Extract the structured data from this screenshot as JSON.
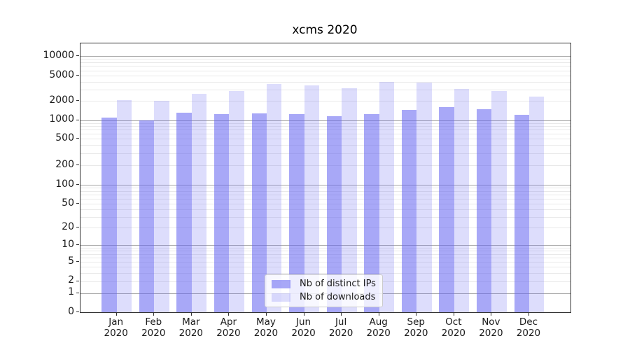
{
  "chart_data": {
    "type": "bar",
    "title": "xcms 2020",
    "categories": [
      {
        "month": "Jan",
        "year": "2020"
      },
      {
        "month": "Feb",
        "year": "2020"
      },
      {
        "month": "Mar",
        "year": "2020"
      },
      {
        "month": "Apr",
        "year": "2020"
      },
      {
        "month": "May",
        "year": "2020"
      },
      {
        "month": "Jun",
        "year": "2020"
      },
      {
        "month": "Jul",
        "year": "2020"
      },
      {
        "month": "Aug",
        "year": "2020"
      },
      {
        "month": "Sep",
        "year": "2020"
      },
      {
        "month": "Oct",
        "year": "2020"
      },
      {
        "month": "Nov",
        "year": "2020"
      },
      {
        "month": "Dec",
        "year": "2020"
      }
    ],
    "series": [
      {
        "name": "Nb of distinct IPs",
        "color": "rgba(100,100,240,0.56)",
        "values": [
          1080,
          990,
          1300,
          1230,
          1280,
          1240,
          1140,
          1250,
          1440,
          1600,
          1500,
          1200
        ]
      },
      {
        "name": "Nb of downloads",
        "color": "rgba(100,100,240,0.22)",
        "values": [
          2070,
          1990,
          2600,
          2840,
          3700,
          3550,
          3140,
          3970,
          3900,
          3100,
          2900,
          2340
        ]
      }
    ],
    "yscale": "symlog",
    "y_ticks": [
      0,
      1,
      2,
      5,
      10,
      20,
      50,
      100,
      200,
      500,
      1000,
      2000,
      5000,
      10000
    ],
    "ylim": [
      0,
      15800
    ],
    "xlabel": "",
    "ylabel": "",
    "grid": true,
    "legend_position": "lower center"
  },
  "colors": {
    "grid_minor": "#e9e9e9",
    "grid_major": "#a8a8a8",
    "spine": "#333333",
    "text": "#1a1a1a",
    "background": "#ffffff"
  }
}
